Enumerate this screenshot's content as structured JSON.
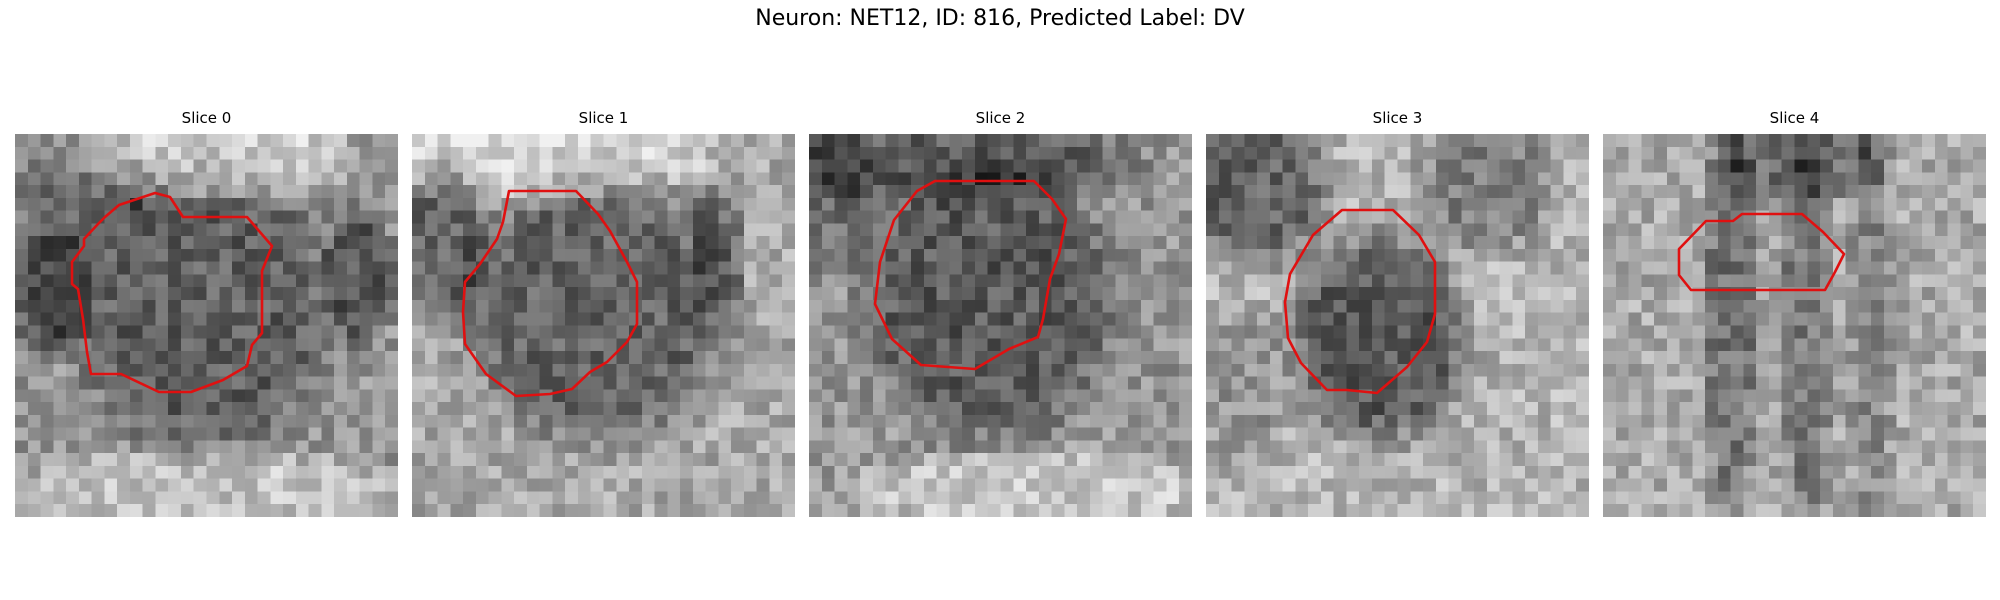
{
  "figure": {
    "title": "Neuron: NET12, ID: 816, Predicted Label: DV"
  },
  "slices": [
    {
      "title": "Slice 0",
      "contour_color": "#e01010"
    },
    {
      "title": "Slice 1",
      "contour_color": "#e01010"
    },
    {
      "title": "Slice 2",
      "contour_color": "#e01010"
    },
    {
      "title": "Slice 3",
      "contour_color": "#e01010"
    },
    {
      "title": "Slice 4",
      "contour_color": "#e01010"
    }
  ],
  "colormap": "gray"
}
